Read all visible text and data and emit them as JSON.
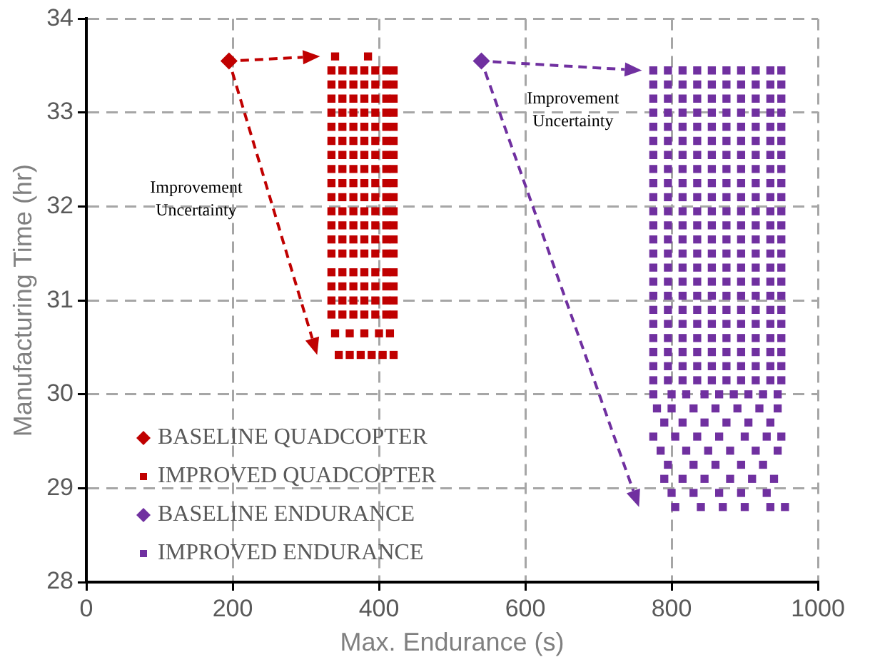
{
  "chart_data": {
    "type": "scatter",
    "xlabel": "Max. Endurance (s)",
    "ylabel": "Manufacturing Time (hr)",
    "xlim": [
      0,
      1000
    ],
    "xticks": [
      0,
      200,
      400,
      600,
      800,
      1000
    ],
    "ylim": [
      28,
      34
    ],
    "yticks": [
      28,
      29,
      30,
      31,
      32,
      33,
      34
    ],
    "grid": true,
    "legend": "bottom left",
    "annotations": [
      "Improvement\nUncertainty",
      "Improvement\nUncertainty"
    ],
    "series": [
      {
        "name": "BASELINE QUADCOPTER",
        "color": "#c00000",
        "marker": "diamond",
        "x": [
          195
        ],
        "values": [
          33.55
        ]
      },
      {
        "name": "IMPROVED QUADCOPTER",
        "color": "#c00000",
        "marker": "square",
        "x": [
          335,
          350,
          365,
          380,
          395,
          410,
          420,
          335,
          350,
          365,
          380,
          395,
          410,
          420,
          335,
          350,
          365,
          380,
          395,
          410,
          420,
          335,
          350,
          365,
          380,
          395,
          410,
          420,
          335,
          350,
          365,
          380,
          395,
          410,
          420,
          335,
          350,
          365,
          380,
          395,
          410,
          420,
          335,
          350,
          365,
          380,
          395,
          410,
          420,
          335,
          350,
          365,
          380,
          395,
          410,
          420,
          335,
          350,
          365,
          380,
          395,
          410,
          420,
          335,
          350,
          365,
          380,
          395,
          410,
          420,
          335,
          350,
          365,
          380,
          395,
          410,
          420,
          335,
          350,
          365,
          380,
          395,
          410,
          420,
          335,
          350,
          365,
          380,
          395,
          410,
          420,
          335,
          350,
          365,
          380,
          395,
          410,
          420,
          335,
          350,
          365,
          380,
          395,
          410,
          420,
          335,
          350,
          365,
          380,
          395,
          410,
          420,
          335,
          350,
          365,
          380,
          395,
          410,
          420,
          335,
          350,
          365,
          380,
          395,
          410,
          420,
          340,
          360,
          380,
          400,
          415,
          345,
          360,
          375,
          390,
          405,
          420,
          340,
          385
        ],
        "values": [
          33.45,
          33.45,
          33.45,
          33.45,
          33.45,
          33.45,
          33.45,
          33.3,
          33.3,
          33.3,
          33.3,
          33.3,
          33.3,
          33.3,
          33.15,
          33.15,
          33.15,
          33.15,
          33.15,
          33.15,
          33.15,
          33.0,
          33.0,
          33.0,
          33.0,
          33.0,
          33.0,
          33.0,
          32.85,
          32.85,
          32.85,
          32.85,
          32.85,
          32.85,
          32.85,
          32.7,
          32.7,
          32.7,
          32.7,
          32.7,
          32.7,
          32.7,
          32.55,
          32.55,
          32.55,
          32.55,
          32.55,
          32.55,
          32.55,
          32.4,
          32.4,
          32.4,
          32.4,
          32.4,
          32.4,
          32.4,
          32.25,
          32.25,
          32.25,
          32.25,
          32.25,
          32.25,
          32.25,
          32.1,
          32.1,
          32.1,
          32.1,
          32.1,
          32.1,
          32.1,
          31.95,
          31.95,
          31.95,
          31.95,
          31.95,
          31.95,
          31.95,
          31.8,
          31.8,
          31.8,
          31.8,
          31.8,
          31.8,
          31.8,
          31.65,
          31.65,
          31.65,
          31.65,
          31.65,
          31.65,
          31.65,
          31.5,
          31.5,
          31.5,
          31.5,
          31.5,
          31.5,
          31.5,
          31.3,
          31.3,
          31.3,
          31.3,
          31.3,
          31.3,
          31.3,
          31.15,
          31.15,
          31.15,
          31.15,
          31.15,
          31.15,
          31.15,
          31.0,
          31.0,
          31.0,
          31.0,
          31.0,
          31.0,
          31.0,
          30.85,
          30.85,
          30.85,
          30.85,
          30.85,
          30.85,
          30.85,
          30.65,
          30.65,
          30.65,
          30.65,
          30.65,
          30.42,
          30.42,
          30.42,
          30.42,
          30.42,
          30.42,
          33.6,
          33.6
        ]
      },
      {
        "name": "BASELINE ENDURANCE",
        "color": "#7030a0",
        "marker": "diamond",
        "x": [
          540
        ],
        "values": [
          33.55
        ]
      },
      {
        "name": "IMPROVED ENDURANCE",
        "color": "#7030a0",
        "marker": "square",
        "x": [
          775,
          795,
          815,
          835,
          855,
          875,
          895,
          915,
          935,
          950,
          775,
          795,
          815,
          835,
          855,
          875,
          895,
          915,
          935,
          950,
          775,
          795,
          815,
          835,
          855,
          875,
          895,
          915,
          935,
          950,
          775,
          795,
          815,
          835,
          855,
          875,
          895,
          915,
          935,
          950,
          775,
          795,
          815,
          835,
          855,
          875,
          895,
          915,
          935,
          950,
          775,
          795,
          815,
          835,
          855,
          875,
          895,
          915,
          935,
          950,
          775,
          795,
          815,
          835,
          855,
          875,
          895,
          915,
          935,
          950,
          775,
          795,
          815,
          835,
          855,
          875,
          895,
          915,
          935,
          950,
          775,
          795,
          815,
          835,
          855,
          875,
          895,
          915,
          935,
          950,
          775,
          795,
          815,
          835,
          855,
          875,
          895,
          915,
          935,
          950,
          775,
          795,
          815,
          835,
          855,
          875,
          895,
          915,
          935,
          950,
          775,
          795,
          815,
          835,
          855,
          875,
          895,
          915,
          935,
          950,
          775,
          795,
          815,
          835,
          855,
          875,
          895,
          915,
          935,
          950,
          775,
          795,
          815,
          835,
          855,
          875,
          895,
          915,
          935,
          950,
          775,
          795,
          815,
          835,
          855,
          875,
          895,
          915,
          935,
          950,
          775,
          795,
          815,
          835,
          855,
          875,
          895,
          915,
          935,
          950,
          775,
          795,
          815,
          835,
          855,
          875,
          895,
          915,
          935,
          950,
          775,
          795,
          815,
          835,
          855,
          875,
          895,
          915,
          935,
          950,
          775,
          795,
          815,
          835,
          855,
          875,
          895,
          915,
          935,
          950,
          775,
          795,
          815,
          835,
          855,
          875,
          895,
          915,
          935,
          950,
          775,
          795,
          815,
          835,
          855,
          875,
          895,
          915,
          935,
          950,
          775,
          795,
          815,
          835,
          855,
          875,
          895,
          915,
          935,
          950,
          775,
          795,
          815,
          835,
          855,
          875,
          895,
          915,
          935,
          950,
          775,
          800,
          820,
          845,
          865,
          885,
          905,
          925,
          945,
          780,
          800,
          830,
          860,
          890,
          920,
          945,
          790,
          815,
          845,
          875,
          905,
          935,
          775,
          805,
          835,
          865,
          900,
          930,
          950,
          785,
          820,
          850,
          880,
          915,
          945,
          795,
          830,
          860,
          895,
          925,
          790,
          815,
          845,
          880,
          910,
          940,
          800,
          830,
          865,
          895,
          930,
          805,
          840,
          870,
          900,
          935,
          955
        ],
        "values": [
          33.45,
          33.45,
          33.45,
          33.45,
          33.45,
          33.45,
          33.45,
          33.45,
          33.45,
          33.45,
          33.3,
          33.3,
          33.3,
          33.3,
          33.3,
          33.3,
          33.3,
          33.3,
          33.3,
          33.3,
          33.15,
          33.15,
          33.15,
          33.15,
          33.15,
          33.15,
          33.15,
          33.15,
          33.15,
          33.15,
          33.0,
          33.0,
          33.0,
          33.0,
          33.0,
          33.0,
          33.0,
          33.0,
          33.0,
          33.0,
          32.85,
          32.85,
          32.85,
          32.85,
          32.85,
          32.85,
          32.85,
          32.85,
          32.85,
          32.85,
          32.7,
          32.7,
          32.7,
          32.7,
          32.7,
          32.7,
          32.7,
          32.7,
          32.7,
          32.7,
          32.55,
          32.55,
          32.55,
          32.55,
          32.55,
          32.55,
          32.55,
          32.55,
          32.55,
          32.55,
          32.4,
          32.4,
          32.4,
          32.4,
          32.4,
          32.4,
          32.4,
          32.4,
          32.4,
          32.4,
          32.25,
          32.25,
          32.25,
          32.25,
          32.25,
          32.25,
          32.25,
          32.25,
          32.25,
          32.25,
          32.1,
          32.1,
          32.1,
          32.1,
          32.1,
          32.1,
          32.1,
          32.1,
          32.1,
          32.1,
          31.95,
          31.95,
          31.95,
          31.95,
          31.95,
          31.95,
          31.95,
          31.95,
          31.95,
          31.95,
          31.8,
          31.8,
          31.8,
          31.8,
          31.8,
          31.8,
          31.8,
          31.8,
          31.8,
          31.8,
          31.65,
          31.65,
          31.65,
          31.65,
          31.65,
          31.65,
          31.65,
          31.65,
          31.65,
          31.65,
          31.5,
          31.5,
          31.5,
          31.5,
          31.5,
          31.5,
          31.5,
          31.5,
          31.5,
          31.5,
          31.35,
          31.35,
          31.35,
          31.35,
          31.35,
          31.35,
          31.35,
          31.35,
          31.35,
          31.35,
          31.2,
          31.2,
          31.2,
          31.2,
          31.2,
          31.2,
          31.2,
          31.2,
          31.2,
          31.2,
          31.05,
          31.05,
          31.05,
          31.05,
          31.05,
          31.05,
          31.05,
          31.05,
          31.05,
          31.05,
          30.9,
          30.9,
          30.9,
          30.9,
          30.9,
          30.9,
          30.9,
          30.9,
          30.9,
          30.9,
          30.75,
          30.75,
          30.75,
          30.75,
          30.75,
          30.75,
          30.75,
          30.75,
          30.75,
          30.75,
          30.6,
          30.6,
          30.6,
          30.6,
          30.6,
          30.6,
          30.6,
          30.6,
          30.6,
          30.6,
          30.45,
          30.45,
          30.45,
          30.45,
          30.45,
          30.45,
          30.45,
          30.45,
          30.45,
          30.45,
          30.3,
          30.3,
          30.3,
          30.3,
          30.3,
          30.3,
          30.3,
          30.3,
          30.3,
          30.3,
          30.15,
          30.15,
          30.15,
          30.15,
          30.15,
          30.15,
          30.15,
          30.15,
          30.15,
          30.15,
          30.0,
          30.0,
          30.0,
          30.0,
          30.0,
          30.0,
          30.0,
          30.0,
          30.0,
          29.85,
          29.85,
          29.85,
          29.85,
          29.85,
          29.85,
          29.85,
          29.7,
          29.7,
          29.7,
          29.7,
          29.7,
          29.7,
          29.55,
          29.55,
          29.55,
          29.55,
          29.55,
          29.55,
          29.55,
          29.4,
          29.4,
          29.4,
          29.4,
          29.4,
          29.4,
          29.25,
          29.25,
          29.25,
          29.25,
          29.25,
          29.1,
          29.1,
          29.1,
          29.1,
          29.1,
          29.1,
          28.95,
          28.95,
          28.95,
          28.95,
          28.95,
          28.8,
          28.8,
          28.8,
          28.8,
          28.8,
          28.8
        ]
      }
    ]
  }
}
